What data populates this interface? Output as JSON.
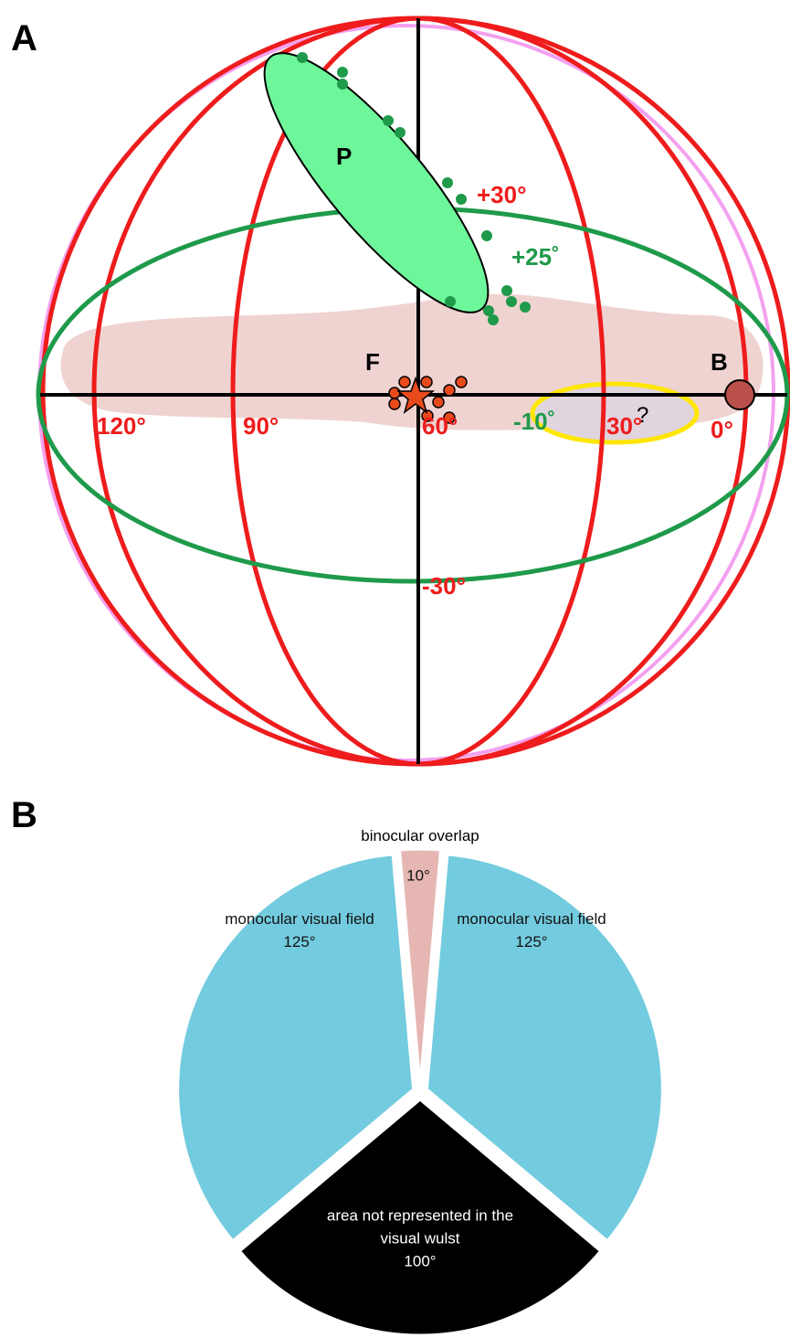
{
  "panel_a": {
    "label": "A",
    "regions": [
      {
        "label": "P"
      },
      {
        "label": "F"
      },
      {
        "label": "B"
      },
      {
        "label": "?"
      }
    ],
    "meridian_labels": [
      "+30°",
      "0°",
      "30°",
      "60°",
      "90°",
      "120°",
      "-30°"
    ],
    "elevation_labels": [
      "+25˚",
      "-10˚"
    ]
  },
  "panel_b_label": "B",
  "chart_data": {
    "type": "pie",
    "annotation": "binocular overlap",
    "categories": [
      null,
      "monocular visual field",
      "area not represented in the visual wulst",
      "monocular visual field"
    ],
    "values": [
      10,
      125,
      100,
      125
    ],
    "value_labels": [
      "10°",
      "125°",
      "100°",
      "125°"
    ],
    "colors": [
      "#e5b6b2",
      "#73cbdf",
      "#000000",
      "#73cbdf"
    ]
  }
}
